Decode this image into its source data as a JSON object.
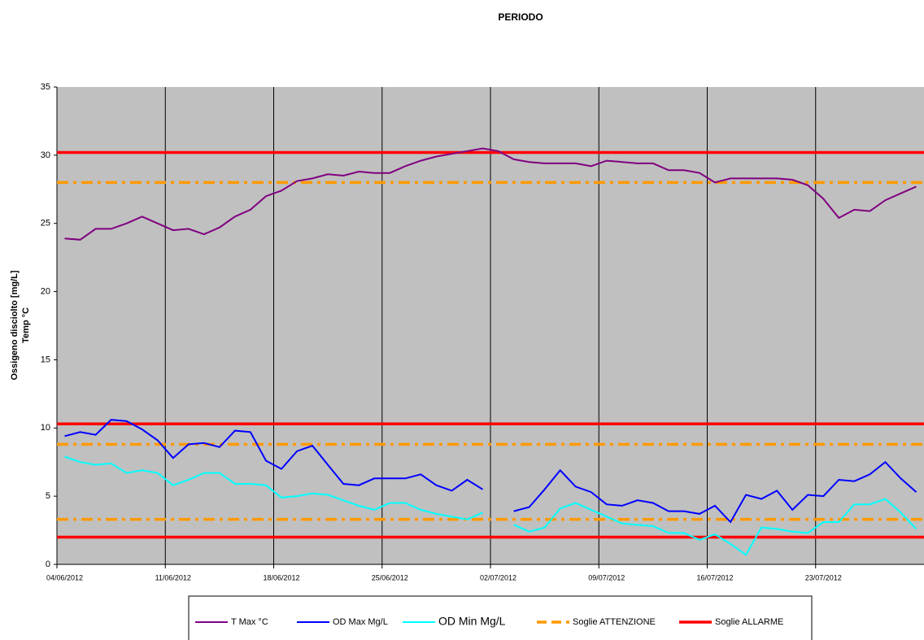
{
  "chart_data": {
    "type": "line",
    "title": "PERIODO",
    "y_label": [
      "Ossigeno disciolto [mg/L]",
      "Temp °C"
    ],
    "categories": [
      "04/06/2012",
      null,
      null,
      null,
      null,
      null,
      null,
      "11/06/2012",
      null,
      null,
      null,
      null,
      null,
      null,
      "18/06/2012",
      null,
      null,
      null,
      null,
      null,
      null,
      "25/06/2012",
      null,
      null,
      null,
      null,
      null,
      null,
      "02/07/2012",
      null,
      null,
      null,
      null,
      null,
      null,
      "09/07/2012",
      null,
      null,
      null,
      null,
      null,
      null,
      "16/07/2012",
      null,
      null,
      null,
      null,
      null,
      null,
      "23/07/2012",
      null,
      null,
      null,
      null,
      null,
      null
    ],
    "ylim": [
      0,
      35
    ],
    "yticks": [
      0,
      5,
      10,
      15,
      20,
      25,
      30,
      35
    ],
    "grid": true,
    "legend": "bottom",
    "series": [
      {
        "name": "T Max °C",
        "color": "#800080",
        "values": [
          23.9,
          23.8,
          24.6,
          24.6,
          25.0,
          25.5,
          25.0,
          24.5,
          24.6,
          24.2,
          24.7,
          25.5,
          26.0,
          27.0,
          27.4,
          28.1,
          28.3,
          28.6,
          28.5,
          28.8,
          28.7,
          28.7,
          29.2,
          29.6,
          29.9,
          30.1,
          30.3,
          30.5,
          30.3,
          29.7,
          29.5,
          29.4,
          29.4,
          29.4,
          29.2,
          29.6,
          29.5,
          29.4,
          29.4,
          28.9,
          28.9,
          28.7,
          28.0,
          28.3,
          28.3,
          28.3,
          28.3,
          28.2,
          27.8,
          26.8,
          25.4,
          26.0,
          25.9,
          26.7,
          27.2,
          27.7
        ]
      },
      {
        "name": "OD Max Mg/L",
        "color": "#0000ff",
        "values": [
          9.4,
          9.7,
          9.5,
          10.6,
          10.5,
          9.9,
          9.1,
          7.8,
          8.8,
          8.9,
          8.6,
          9.8,
          9.7,
          7.6,
          7.0,
          8.3,
          8.7,
          7.3,
          5.9,
          5.8,
          6.3,
          6.3,
          6.3,
          6.6,
          5.8,
          5.4,
          6.2,
          5.5,
          null,
          3.9,
          4.2,
          5.5,
          6.9,
          5.7,
          5.3,
          4.4,
          4.3,
          4.7,
          4.5,
          3.9,
          3.9,
          3.7,
          4.3,
          3.1,
          5.1,
          4.8,
          5.4,
          4.0,
          5.1,
          5.0,
          6.2,
          6.1,
          6.6,
          7.5,
          6.3,
          5.3
        ]
      },
      {
        "name": "OD Min Mg/L",
        "color": "#00ffff",
        "values": [
          7.9,
          7.5,
          7.3,
          7.4,
          6.7,
          6.9,
          6.7,
          5.8,
          6.2,
          6.7,
          6.7,
          5.9,
          5.9,
          5.8,
          4.9,
          5.0,
          5.2,
          5.1,
          4.7,
          4.3,
          4.0,
          4.5,
          4.5,
          4.0,
          3.7,
          3.5,
          3.3,
          3.8,
          null,
          2.9,
          2.4,
          2.7,
          4.1,
          4.5,
          4.0,
          3.5,
          3.0,
          2.9,
          2.8,
          2.3,
          2.3,
          1.8,
          2.2,
          1.5,
          0.7,
          2.7,
          2.6,
          2.4,
          2.3,
          3.1,
          3.1,
          4.4,
          4.4,
          4.8,
          3.8,
          2.6
        ]
      }
    ],
    "thresholds": [
      {
        "name": "Soglie ATTENZIONE",
        "color": "#ff9900",
        "dashed": true,
        "values": [
          28.0,
          8.8,
          3.3
        ]
      },
      {
        "name": "Soglie ALLARME",
        "color": "#ff0000",
        "dashed": false,
        "values": [
          30.2,
          10.3,
          2.0
        ]
      }
    ]
  }
}
